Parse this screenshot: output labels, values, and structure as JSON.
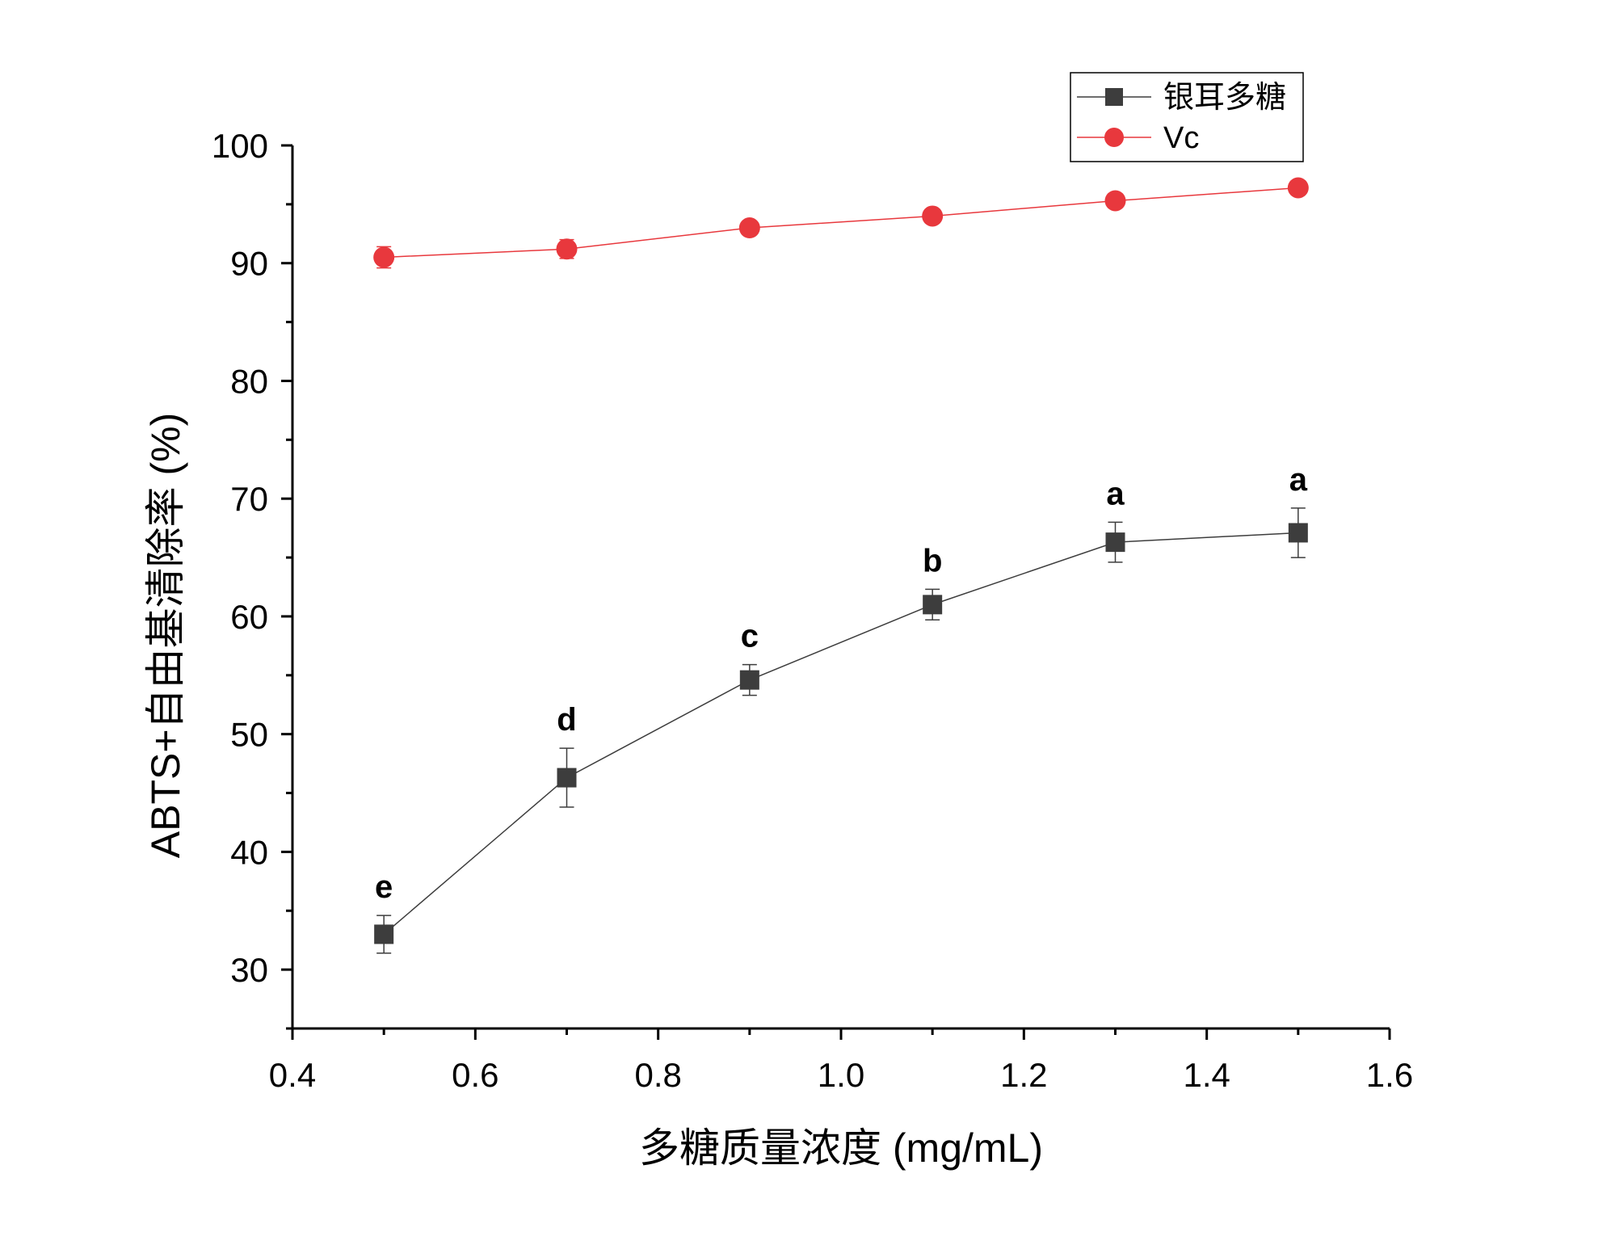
{
  "chart_data": {
    "type": "line",
    "xlabel": "多糖质量浓度 (mg/mL)",
    "ylabel": "ABTS+自由基清除率 (%)",
    "xlim": [
      0.4,
      1.6
    ],
    "ylim": [
      25,
      100
    ],
    "xticks": [
      0.4,
      0.6,
      0.8,
      1.0,
      1.2,
      1.4,
      1.6
    ],
    "xtick_labels": [
      "0.4",
      "0.6",
      "0.8",
      "1.0",
      "1.2",
      "1.4",
      "1.6"
    ],
    "yticks": [
      30,
      40,
      50,
      60,
      70,
      80,
      90,
      100
    ],
    "ytick_labels": [
      "30",
      "40",
      "50",
      "60",
      "70",
      "80",
      "90",
      "100"
    ],
    "grid": false,
    "legend_position": "top-right",
    "x": [
      0.5,
      0.7,
      0.9,
      1.1,
      1.3,
      1.5
    ],
    "series": [
      {
        "name": "银耳多糖",
        "marker": "square",
        "color": "#3d3d3d",
        "values": [
          33.0,
          46.3,
          54.6,
          61.0,
          66.3,
          67.1
        ],
        "errors": [
          1.6,
          2.5,
          1.3,
          1.3,
          1.7,
          2.1
        ],
        "labels": [
          "e",
          "d",
          "c",
          "b",
          "a",
          "a"
        ]
      },
      {
        "name": "Vc",
        "marker": "circle",
        "color": "#e8383d",
        "values": [
          90.5,
          91.2,
          93.0,
          94.0,
          95.3,
          96.4
        ],
        "errors": [
          0.9,
          0.8,
          0.4,
          0.4,
          0.4,
          0.3
        ]
      }
    ]
  }
}
